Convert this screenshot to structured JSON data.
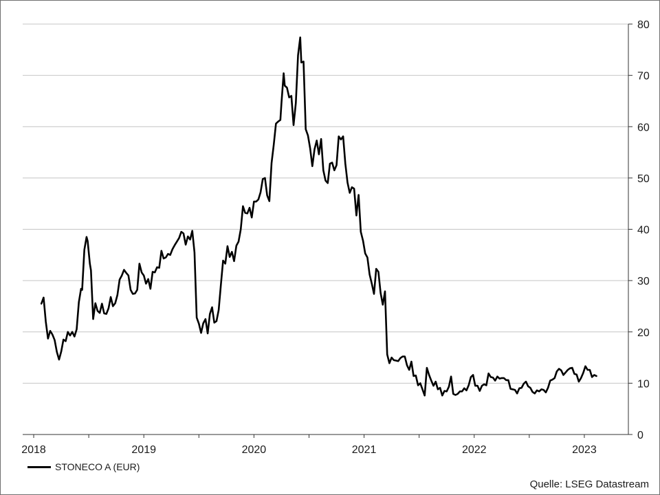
{
  "chart_data": {
    "type": "line",
    "title": "",
    "xlabel": "",
    "ylabel": "",
    "ylim": [
      0,
      80
    ],
    "yticks": [
      0,
      10,
      20,
      30,
      40,
      50,
      60,
      70,
      80
    ],
    "y_axis_side": "right",
    "xlim": [
      2017.9,
      2023.4
    ],
    "year_labels": [
      {
        "label": "2018",
        "x": 2018.0
      },
      {
        "label": "2019",
        "x": 2019.0
      },
      {
        "label": "2020",
        "x": 2020.0
      },
      {
        "label": "2021",
        "x": 2021.0
      },
      {
        "label": "2022",
        "x": 2022.0
      },
      {
        "label": "2023",
        "x": 2023.0
      }
    ],
    "grid": "horizontal",
    "legend_position": "bottom-left",
    "line_color": "#000000",
    "series": [
      {
        "name": "STONECO A (EUR)",
        "points": [
          [
            2018.07,
            25.5
          ],
          [
            2018.09,
            26.7
          ],
          [
            2018.11,
            22
          ],
          [
            2018.13,
            18.7
          ],
          [
            2018.15,
            20.2
          ],
          [
            2018.17,
            19.5
          ],
          [
            2018.19,
            18.4
          ],
          [
            2018.21,
            16.1
          ],
          [
            2018.23,
            14.6
          ],
          [
            2018.25,
            16.2
          ],
          [
            2018.27,
            18.5
          ],
          [
            2018.29,
            18.2
          ],
          [
            2018.31,
            20
          ],
          [
            2018.33,
            19.3
          ],
          [
            2018.35,
            20
          ],
          [
            2018.37,
            19.1
          ],
          [
            2018.39,
            20.5
          ],
          [
            2018.41,
            25.8
          ],
          [
            2018.43,
            28.4
          ],
          [
            2018.44,
            28.2
          ],
          [
            2018.46,
            36
          ],
          [
            2018.48,
            38.5
          ],
          [
            2018.49,
            37.7
          ],
          [
            2018.51,
            33.3
          ],
          [
            2018.52,
            32
          ],
          [
            2018.54,
            22.5
          ],
          [
            2018.56,
            25.6
          ],
          [
            2018.58,
            24.1
          ],
          [
            2018.6,
            23.7
          ],
          [
            2018.62,
            25.5
          ],
          [
            2018.64,
            23.6
          ],
          [
            2018.66,
            23.5
          ],
          [
            2018.68,
            24.6
          ],
          [
            2018.7,
            26.8
          ],
          [
            2018.72,
            25
          ],
          [
            2018.74,
            25.6
          ],
          [
            2018.76,
            27.2
          ],
          [
            2018.78,
            30.2
          ],
          [
            2018.8,
            31
          ],
          [
            2018.82,
            32.1
          ],
          [
            2018.84,
            31.5
          ],
          [
            2018.86,
            31
          ],
          [
            2018.88,
            28.2
          ],
          [
            2018.9,
            27.4
          ],
          [
            2018.92,
            27.5
          ],
          [
            2018.94,
            28.2
          ],
          [
            2018.96,
            33.3
          ],
          [
            2018.98,
            31.6
          ],
          [
            2019.0,
            31
          ],
          [
            2019.02,
            29.4
          ],
          [
            2019.04,
            30.3
          ],
          [
            2019.06,
            28.4
          ],
          [
            2019.08,
            31.7
          ],
          [
            2019.1,
            31.6
          ],
          [
            2019.12,
            32.6
          ],
          [
            2019.14,
            32.5
          ],
          [
            2019.16,
            35.8
          ],
          [
            2019.18,
            34.3
          ],
          [
            2019.2,
            34.5
          ],
          [
            2019.22,
            35.2
          ],
          [
            2019.24,
            35
          ],
          [
            2019.26,
            36.1
          ],
          [
            2019.28,
            36.9
          ],
          [
            2019.3,
            37.6
          ],
          [
            2019.32,
            38.3
          ],
          [
            2019.34,
            39.5
          ],
          [
            2019.36,
            39.2
          ],
          [
            2019.38,
            37
          ],
          [
            2019.4,
            38.6
          ],
          [
            2019.42,
            38
          ],
          [
            2019.44,
            39.7
          ],
          [
            2019.46,
            35.5
          ],
          [
            2019.48,
            22.8
          ],
          [
            2019.5,
            21.6
          ],
          [
            2019.52,
            19.8
          ],
          [
            2019.54,
            21.7
          ],
          [
            2019.56,
            22.5
          ],
          [
            2019.58,
            19.7
          ],
          [
            2019.6,
            23.5
          ],
          [
            2019.62,
            24.8
          ],
          [
            2019.64,
            21.8
          ],
          [
            2019.66,
            22.1
          ],
          [
            2019.68,
            24.3
          ],
          [
            2019.7,
            29.2
          ],
          [
            2019.72,
            33.9
          ],
          [
            2019.74,
            33.3
          ],
          [
            2019.76,
            36.7
          ],
          [
            2019.78,
            34.6
          ],
          [
            2019.8,
            35.6
          ],
          [
            2019.82,
            33.8
          ],
          [
            2019.84,
            36.8
          ],
          [
            2019.86,
            37.6
          ],
          [
            2019.88,
            40
          ],
          [
            2019.9,
            44.5
          ],
          [
            2019.92,
            43.2
          ],
          [
            2019.94,
            43.1
          ],
          [
            2019.96,
            44.2
          ],
          [
            2019.98,
            42.3
          ],
          [
            2020.0,
            45.4
          ],
          [
            2020.02,
            45.4
          ],
          [
            2020.04,
            45.8
          ],
          [
            2020.06,
            47.2
          ],
          [
            2020.08,
            49.8
          ],
          [
            2020.1,
            50
          ],
          [
            2020.12,
            46.6
          ],
          [
            2020.14,
            45.5
          ],
          [
            2020.16,
            52.9
          ],
          [
            2020.18,
            56.5
          ],
          [
            2020.2,
            60.6
          ],
          [
            2020.22,
            61
          ],
          [
            2020.24,
            61.3
          ],
          [
            2020.25,
            64.6
          ],
          [
            2020.27,
            70.4
          ],
          [
            2020.28,
            68
          ],
          [
            2020.3,
            67.6
          ],
          [
            2020.32,
            65.7
          ],
          [
            2020.34,
            66
          ],
          [
            2020.36,
            60.3
          ],
          [
            2020.38,
            64.6
          ],
          [
            2020.4,
            73.9
          ],
          [
            2020.42,
            77.4
          ],
          [
            2020.43,
            72.5
          ],
          [
            2020.45,
            72.7
          ],
          [
            2020.47,
            59.5
          ],
          [
            2020.49,
            58.3
          ],
          [
            2020.51,
            55.8
          ],
          [
            2020.53,
            52.3
          ],
          [
            2020.55,
            55.6
          ],
          [
            2020.57,
            57.3
          ],
          [
            2020.59,
            54.6
          ],
          [
            2020.61,
            57.6
          ],
          [
            2020.63,
            51.5
          ],
          [
            2020.65,
            49.5
          ],
          [
            2020.67,
            49
          ],
          [
            2020.69,
            52.8
          ],
          [
            2020.71,
            53
          ],
          [
            2020.73,
            51.5
          ],
          [
            2020.75,
            52.5
          ],
          [
            2020.77,
            58.1
          ],
          [
            2020.79,
            57.5
          ],
          [
            2020.81,
            58.1
          ],
          [
            2020.83,
            52.8
          ],
          [
            2020.85,
            49.1
          ],
          [
            2020.87,
            47.1
          ],
          [
            2020.89,
            48.2
          ],
          [
            2020.91,
            47.9
          ],
          [
            2020.93,
            42.7
          ],
          [
            2020.95,
            46.7
          ],
          [
            2020.97,
            39.5
          ],
          [
            2020.99,
            37.8
          ],
          [
            2021.01,
            35.3
          ],
          [
            2021.03,
            34.5
          ],
          [
            2021.05,
            31.2
          ],
          [
            2021.07,
            29.4
          ],
          [
            2021.09,
            27.4
          ],
          [
            2021.11,
            32.3
          ],
          [
            2021.13,
            31.7
          ],
          [
            2021.15,
            27.6
          ],
          [
            2021.17,
            25.3
          ],
          [
            2021.19,
            27.9
          ],
          [
            2021.21,
            15.6
          ],
          [
            2021.23,
            13.9
          ],
          [
            2021.25,
            15
          ],
          [
            2021.27,
            14.5
          ],
          [
            2021.29,
            14.4
          ],
          [
            2021.31,
            14.3
          ],
          [
            2021.33,
            14.9
          ],
          [
            2021.35,
            15.2
          ],
          [
            2021.37,
            15.2
          ],
          [
            2021.39,
            13.5
          ],
          [
            2021.41,
            12.6
          ],
          [
            2021.43,
            14.2
          ],
          [
            2021.45,
            11.4
          ],
          [
            2021.47,
            11.5
          ],
          [
            2021.49,
            9.6
          ],
          [
            2021.51,
            10
          ],
          [
            2021.53,
            8.8
          ],
          [
            2021.55,
            7.6
          ],
          [
            2021.57,
            13
          ],
          [
            2021.59,
            11.6
          ],
          [
            2021.61,
            10.5
          ],
          [
            2021.63,
            9.5
          ],
          [
            2021.65,
            10.3
          ],
          [
            2021.67,
            8.8
          ],
          [
            2021.69,
            9.1
          ],
          [
            2021.71,
            7.6
          ],
          [
            2021.73,
            8.5
          ],
          [
            2021.75,
            8.4
          ],
          [
            2021.77,
            9.3
          ],
          [
            2021.79,
            11.3
          ],
          [
            2021.81,
            7.9
          ],
          [
            2021.83,
            7.7
          ],
          [
            2021.85,
            7.9
          ],
          [
            2021.87,
            8.4
          ],
          [
            2021.89,
            8.4
          ],
          [
            2021.91,
            9
          ],
          [
            2021.93,
            8.6
          ],
          [
            2021.95,
            9.6
          ],
          [
            2021.97,
            11.2
          ],
          [
            2021.99,
            11.6
          ],
          [
            2022.01,
            9.5
          ],
          [
            2022.03,
            9.5
          ],
          [
            2022.05,
            8.5
          ],
          [
            2022.07,
            9.5
          ],
          [
            2022.09,
            9.8
          ],
          [
            2022.11,
            9.6
          ],
          [
            2022.13,
            11.9
          ],
          [
            2022.15,
            11.2
          ],
          [
            2022.17,
            11.1
          ],
          [
            2022.19,
            10.5
          ],
          [
            2022.21,
            11.3
          ],
          [
            2022.23,
            10.9
          ],
          [
            2022.25,
            11
          ],
          [
            2022.27,
            11
          ],
          [
            2022.29,
            10.6
          ],
          [
            2022.31,
            10.6
          ],
          [
            2022.33,
            8.9
          ],
          [
            2022.35,
            8.8
          ],
          [
            2022.37,
            8.7
          ],
          [
            2022.39,
            8
          ],
          [
            2022.41,
            9
          ],
          [
            2022.43,
            9.1
          ],
          [
            2022.45,
            9.9
          ],
          [
            2022.47,
            10.3
          ],
          [
            2022.49,
            9.4
          ],
          [
            2022.51,
            9.1
          ],
          [
            2022.53,
            8.3
          ],
          [
            2022.55,
            8
          ],
          [
            2022.57,
            8.6
          ],
          [
            2022.59,
            8.4
          ],
          [
            2022.61,
            8.8
          ],
          [
            2022.63,
            8.7
          ],
          [
            2022.65,
            8.2
          ],
          [
            2022.67,
            9.1
          ],
          [
            2022.69,
            10.5
          ],
          [
            2022.71,
            10.7
          ],
          [
            2022.73,
            11
          ],
          [
            2022.75,
            12.3
          ],
          [
            2022.77,
            12.8
          ],
          [
            2022.79,
            12.5
          ],
          [
            2022.81,
            11.6
          ],
          [
            2022.83,
            12.1
          ],
          [
            2022.85,
            12.6
          ],
          [
            2022.87,
            12.9
          ],
          [
            2022.89,
            13
          ],
          [
            2022.91,
            11.8
          ],
          [
            2022.93,
            11.7
          ],
          [
            2022.95,
            10.3
          ],
          [
            2022.97,
            11
          ],
          [
            2022.99,
            12
          ],
          [
            2023.01,
            13.3
          ],
          [
            2023.03,
            12.6
          ],
          [
            2023.05,
            12.6
          ],
          [
            2023.07,
            11.2
          ],
          [
            2023.09,
            11.6
          ],
          [
            2023.11,
            11.4
          ]
        ]
      }
    ]
  },
  "legend": {
    "label": "STONECO A (EUR)"
  },
  "source": "Quelle: LSEG Datastream"
}
